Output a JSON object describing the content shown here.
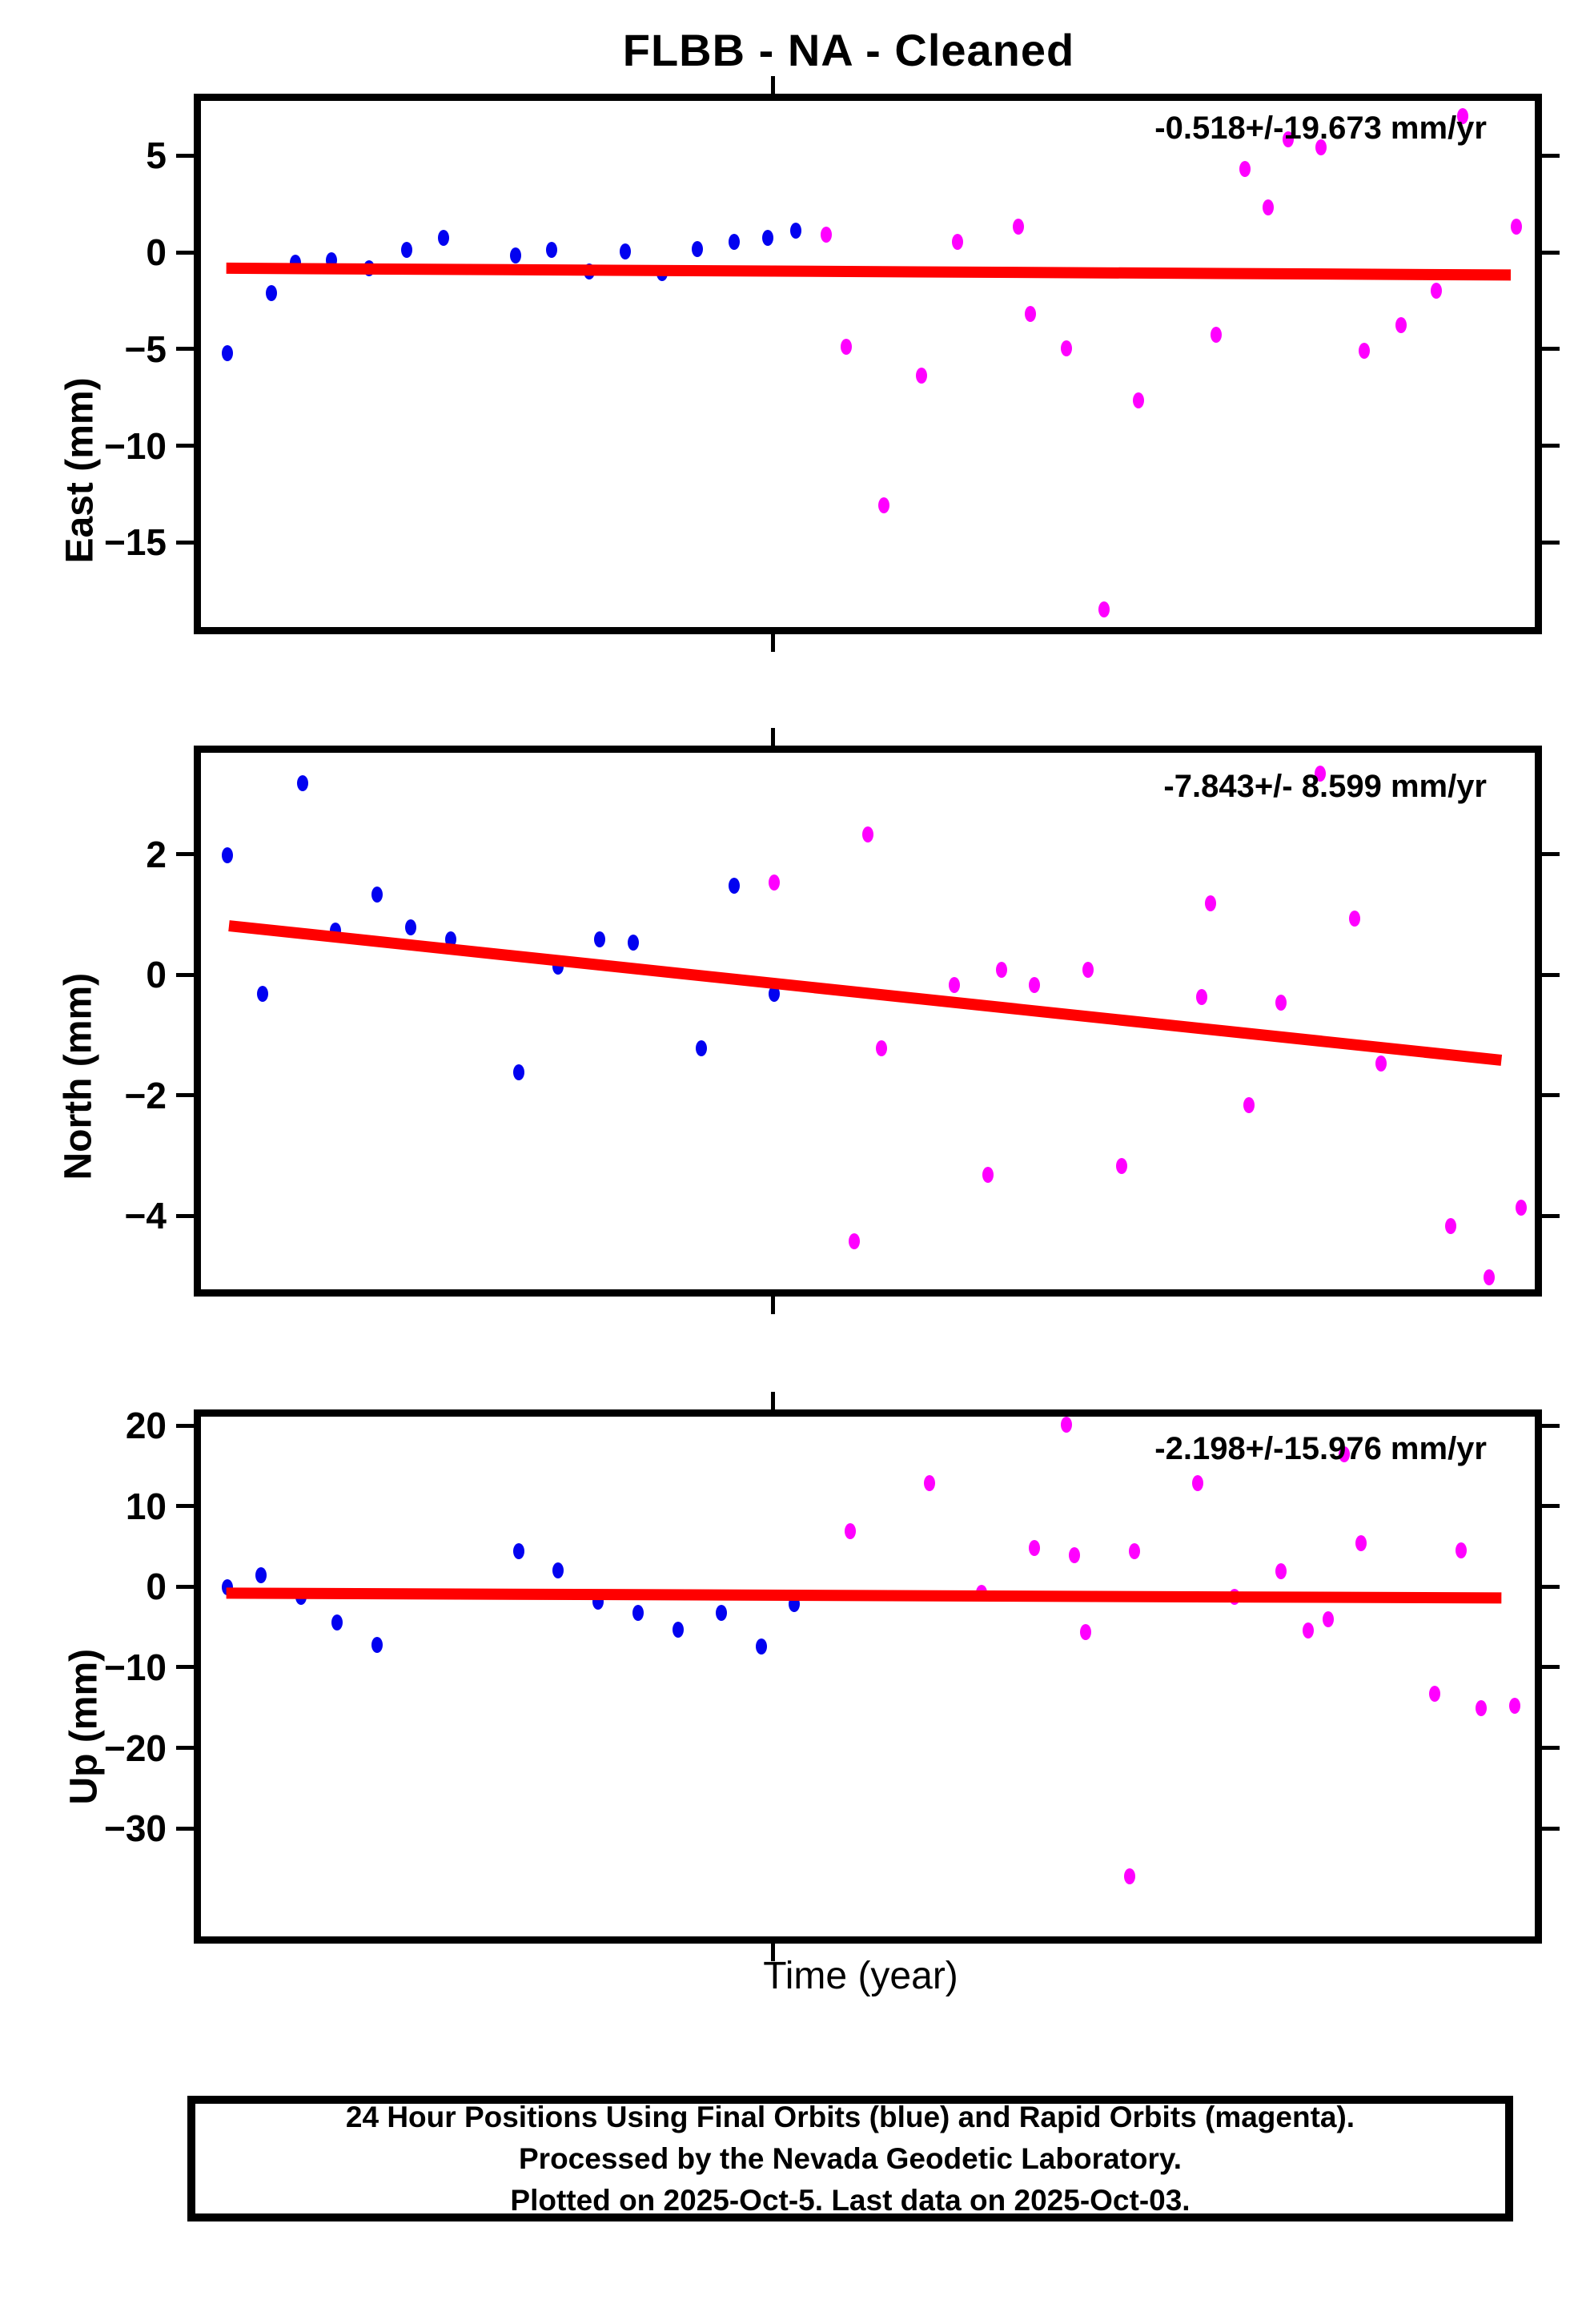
{
  "title": "FLBB  - NA - Cleaned",
  "xlabel": "Time (year)",
  "footer": {
    "line1": "24 Hour Positions Using Final Orbits (blue) and Rapid Orbits (magenta).",
    "line2": "Processed by the Nevada Geodetic Laboratory.",
    "line3": "Plotted on 2025-Oct-5. Last data on 2025-Oct-03."
  },
  "colors": {
    "final_orbits_blue": "#0202f0",
    "rapid_orbits_magenta": "#ff00ff",
    "trend_red": "#ff0000",
    "frame_black": "#000000"
  },
  "legend_note": "Final Orbits = blue, Rapid Orbits = magenta, trend line = red",
  "x_axis": {
    "label": "Time (year)",
    "unlabeled_year_tick_fraction": 0.429
  },
  "chart_data": [
    {
      "type": "scatter",
      "component": "East",
      "ylabel": "East (mm)",
      "annotation": "-0.518+/-19.673 mm/yr",
      "rate_mm_per_yr": -0.518,
      "rate_sigma_mm_per_yr": 19.673,
      "ylim": [
        8.2,
        -19.0
      ],
      "yticks": [
        {
          "label": "5",
          "v": 5
        },
        {
          "label": "0",
          "v": 0
        },
        {
          "label": "−5",
          "v": -5
        },
        {
          "label": "−10",
          "v": -10
        },
        {
          "label": "−15",
          "v": -15
        }
      ],
      "trend": {
        "t1": 0.019,
        "v1": -0.45,
        "t2": 0.982,
        "v2": -0.8
      },
      "series": [
        {
          "name": "Final Orbits (blue)",
          "color_key": "final_orbits_blue",
          "points": [
            [
              0.02,
              -4.85
            ],
            [
              0.053,
              -1.75
            ],
            [
              0.071,
              -0.15
            ],
            [
              0.098,
              -0.05
            ],
            [
              0.126,
              -0.45
            ],
            [
              0.154,
              0.5
            ],
            [
              0.182,
              1.1
            ],
            [
              0.236,
              0.2
            ],
            [
              0.263,
              0.5
            ],
            [
              0.291,
              -0.6
            ],
            [
              0.318,
              0.4
            ],
            [
              0.346,
              -0.7
            ],
            [
              0.372,
              0.55
            ],
            [
              0.4,
              0.9
            ],
            [
              0.425,
              1.1
            ],
            [
              0.446,
              1.5
            ]
          ]
        },
        {
          "name": "Rapid Orbits (magenta)",
          "color_key": "rapid_orbits_magenta",
          "points": [
            [
              0.469,
              1.3
            ],
            [
              0.484,
              -4.5
            ],
            [
              0.512,
              -12.7
            ],
            [
              0.54,
              -6.0
            ],
            [
              0.567,
              0.9
            ],
            [
              0.613,
              1.7
            ],
            [
              0.622,
              -2.8
            ],
            [
              0.649,
              -4.6
            ],
            [
              0.677,
              -18.1
            ],
            [
              0.703,
              -7.3
            ],
            [
              0.761,
              -3.9
            ],
            [
              0.783,
              4.7
            ],
            [
              0.8,
              2.7
            ],
            [
              0.815,
              6.2
            ],
            [
              0.84,
              5.8
            ],
            [
              0.872,
              -4.7
            ],
            [
              0.9,
              -3.4
            ],
            [
              0.926,
              -1.6
            ],
            [
              0.946,
              7.4
            ],
            [
              0.986,
              1.7
            ]
          ]
        }
      ]
    },
    {
      "type": "scatter",
      "component": "North",
      "ylabel": "North (mm)",
      "annotation": "-7.843+/- 8.599 mm/yr",
      "rate_mm_per_yr": -7.843,
      "rate_sigma_mm_per_yr": 8.599,
      "ylim": [
        3.8,
        -5.1
      ],
      "yticks": [
        {
          "label": "2",
          "v": 2
        },
        {
          "label": "0",
          "v": 0
        },
        {
          "label": "−2",
          "v": -2
        },
        {
          "label": "−4",
          "v": -4
        }
      ],
      "trend": {
        "t1": 0.021,
        "v1": 0.93,
        "t2": 0.975,
        "v2": -1.3
      },
      "series": [
        {
          "name": "Final Orbits (blue)",
          "color_key": "final_orbits_blue",
          "points": [
            [
              0.02,
              2.1
            ],
            [
              0.046,
              -0.2
            ],
            [
              0.076,
              3.3
            ],
            [
              0.101,
              0.85
            ],
            [
              0.132,
              1.45
            ],
            [
              0.157,
              0.9
            ],
            [
              0.187,
              0.7
            ],
            [
              0.238,
              -1.5
            ],
            [
              0.268,
              0.25
            ],
            [
              0.299,
              0.7
            ],
            [
              0.324,
              0.65
            ],
            [
              0.375,
              -1.1
            ],
            [
              0.4,
              1.6
            ],
            [
              0.43,
              -0.2
            ]
          ]
        },
        {
          "name": "Rapid Orbits (magenta)",
          "color_key": "rapid_orbits_magenta",
          "points": [
            [
              0.43,
              1.65
            ],
            [
              0.49,
              -4.3
            ],
            [
              0.5,
              2.45
            ],
            [
              0.51,
              -1.1
            ],
            [
              0.565,
              -0.05
            ],
            [
              0.59,
              -3.2
            ],
            [
              0.6,
              0.2
            ],
            [
              0.625,
              -0.05
            ],
            [
              0.665,
              0.2
            ],
            [
              0.69,
              -3.05
            ],
            [
              0.75,
              -0.25
            ],
            [
              0.757,
              1.3
            ],
            [
              0.786,
              -2.05
            ],
            [
              0.81,
              -0.35
            ],
            [
              0.839,
              3.45
            ],
            [
              0.865,
              1.05
            ],
            [
              0.885,
              -1.35
            ],
            [
              0.937,
              -4.05
            ],
            [
              0.966,
              -4.9
            ],
            [
              0.99,
              -3.75
            ]
          ]
        }
      ]
    },
    {
      "type": "scatter",
      "component": "Up",
      "ylabel": "Up (mm)",
      "annotation": "-2.198+/-15.976 mm/yr",
      "rate_mm_per_yr": -2.198,
      "rate_sigma_mm_per_yr": 15.976,
      "ylim": [
        22.0,
        -42.5
      ],
      "yticks": [
        {
          "label": "20",
          "v": 20
        },
        {
          "label": "10",
          "v": 10
        },
        {
          "label": "0",
          "v": 0
        },
        {
          "label": "−10",
          "v": -10
        },
        {
          "label": "−20",
          "v": -20
        },
        {
          "label": "−30",
          "v": -30
        }
      ],
      "trend": {
        "t1": 0.019,
        "v1": 0.1,
        "t2": 0.975,
        "v2": -0.5
      },
      "series": [
        {
          "name": "Final Orbits (blue)",
          "color_key": "final_orbits_blue",
          "points": [
            [
              0.02,
              0.8
            ],
            [
              0.045,
              2.3
            ],
            [
              0.075,
              -0.4
            ],
            [
              0.102,
              -3.5
            ],
            [
              0.132,
              -6.3
            ],
            [
              0.238,
              5.3
            ],
            [
              0.268,
              2.9
            ],
            [
              0.298,
              -1.0
            ],
            [
              0.328,
              -2.3
            ],
            [
              0.358,
              -4.4
            ],
            [
              0.39,
              -2.3
            ],
            [
              0.42,
              -6.5
            ],
            [
              0.445,
              -1.3
            ]
          ]
        },
        {
          "name": "Rapid Orbits (magenta)",
          "color_key": "rapid_orbits_magenta",
          "points": [
            [
              0.487,
              7.8
            ],
            [
              0.546,
              13.8
            ],
            [
              0.585,
              0.1
            ],
            [
              0.625,
              5.7
            ],
            [
              0.649,
              21.0
            ],
            [
              0.655,
              4.8
            ],
            [
              0.663,
              -4.7
            ],
            [
              0.696,
              -35.0
            ],
            [
              0.7,
              5.3
            ],
            [
              0.747,
              13.8
            ],
            [
              0.775,
              -0.4
            ],
            [
              0.81,
              2.8
            ],
            [
              0.83,
              -4.5
            ],
            [
              0.845,
              -3.1
            ],
            [
              0.857,
              17.3
            ],
            [
              0.87,
              6.3
            ],
            [
              0.925,
              -12.4
            ],
            [
              0.945,
              5.4
            ],
            [
              0.96,
              -14.2
            ],
            [
              0.985,
              -13.9
            ]
          ]
        }
      ]
    }
  ]
}
